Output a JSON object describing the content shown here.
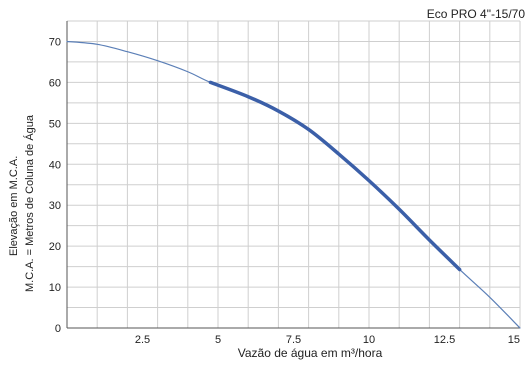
{
  "chart_data": {
    "type": "line",
    "title": "Eco PRO 4\"-15/70",
    "xlabel": "Vazão de água em m³/hora",
    "ylabel_lines": [
      "Elevação em M.C.A.",
      "M.C.A. = Metros de Coluna de Água"
    ],
    "xlim": [
      0,
      15
    ],
    "ylim": [
      0,
      75
    ],
    "x_ticks": [
      2.5,
      5,
      7.5,
      10,
      12.5,
      15
    ],
    "x_tick_labels": [
      "2.5",
      "5",
      "7.5",
      "10",
      "12.5",
      "15"
    ],
    "y_ticks": [
      0,
      10,
      20,
      30,
      40,
      50,
      60,
      70
    ],
    "y_tick_labels": [
      "0",
      "10",
      "20",
      "30",
      "40",
      "50",
      "60",
      "70"
    ],
    "grid": true,
    "series": [
      {
        "points": [
          [
            0,
            70
          ],
          [
            1,
            69.3
          ],
          [
            2,
            67.5
          ],
          [
            3,
            65.3
          ],
          [
            4,
            62.6
          ],
          [
            4.75,
            60
          ],
          [
            6,
            56.5
          ],
          [
            7,
            53
          ],
          [
            8,
            48.5
          ],
          [
            9,
            42.5
          ],
          [
            10,
            36
          ],
          [
            11,
            29
          ],
          [
            12,
            21.5
          ],
          [
            13,
            14.3
          ],
          [
            14,
            7.5
          ],
          [
            15,
            0
          ]
        ],
        "color": "#5b7fb7"
      },
      {
        "points": [
          [
            4.75,
            60
          ],
          [
            6,
            56.5
          ],
          [
            7,
            53
          ],
          [
            8,
            48.5
          ],
          [
            9,
            42.5
          ],
          [
            10,
            36
          ],
          [
            11,
            29
          ],
          [
            12,
            21.5
          ],
          [
            13,
            14.3
          ]
        ],
        "color": "#3b5fa8",
        "emphasis": "operating-range"
      }
    ]
  }
}
